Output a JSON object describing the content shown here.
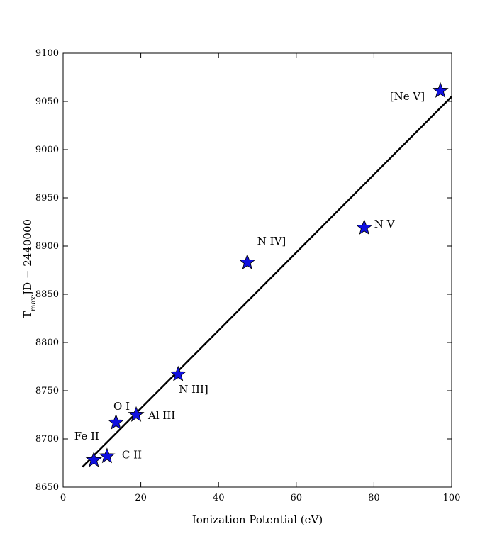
{
  "chart_data": {
    "type": "scatter",
    "title": "",
    "xlabel": "Ionization Potential (eV)",
    "ylabel_main": "T",
    "ylabel_sub": "max",
    "ylabel_rest": "JD − 2440000",
    "xlim": [
      0,
      100
    ],
    "ylim": [
      8650,
      9100
    ],
    "xticks": [
      0,
      20,
      40,
      60,
      80,
      100
    ],
    "yticks": [
      8650,
      8700,
      8750,
      8800,
      8850,
      8900,
      8950,
      9000,
      9050,
      9100
    ],
    "grid": false,
    "marker_color": "#1010e0",
    "line_color": "#000000",
    "points": [
      {
        "label": "Fe II",
        "x": 7.9,
        "y": 8678
      },
      {
        "label": "C II",
        "x": 11.3,
        "y": 8682
      },
      {
        "label": "O I",
        "x": 13.6,
        "y": 8717
      },
      {
        "label": "Al III",
        "x": 18.8,
        "y": 8725
      },
      {
        "label": "N III]",
        "x": 29.6,
        "y": 8767
      },
      {
        "label": "N IV]",
        "x": 47.4,
        "y": 8883
      },
      {
        "label": "N V",
        "x": 77.5,
        "y": 8919
      },
      {
        "label": "[Ne V]",
        "x": 97.1,
        "y": 9061
      }
    ],
    "fit_line": {
      "x": [
        5,
        100
      ],
      "y": [
        8671,
        9055
      ]
    }
  }
}
